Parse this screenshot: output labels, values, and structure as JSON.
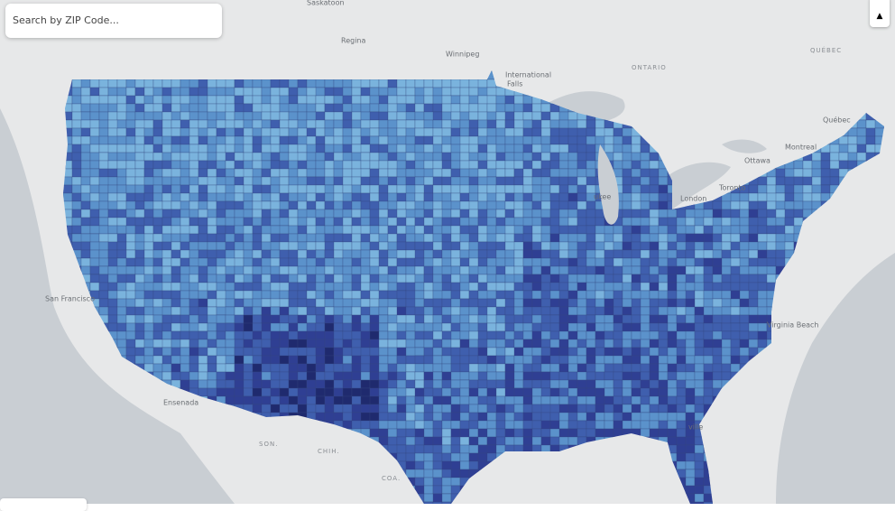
{
  "search": {
    "placeholder": "Search by ZIP Code..."
  },
  "places": [
    {
      "label": "Saskatoon"
    },
    {
      "label": "Regina"
    },
    {
      "label": "Winnipeg"
    },
    {
      "label": "International"
    },
    {
      "label": "Falls"
    },
    {
      "label": "ONTARIO"
    },
    {
      "label": "QUÉBEC"
    },
    {
      "label": "Québec"
    },
    {
      "label": "Montreal"
    },
    {
      "label": "Ottawa"
    },
    {
      "label": "Toronto"
    },
    {
      "label": "London"
    },
    {
      "label": "Virginia Beach"
    },
    {
      "label": "San Francisco"
    },
    {
      "label": "Ensenada"
    },
    {
      "label": "SON."
    },
    {
      "label": "CHIH."
    },
    {
      "label": "COA."
    },
    {
      "label": "ukee"
    },
    {
      "label": "ville"
    }
  ]
}
